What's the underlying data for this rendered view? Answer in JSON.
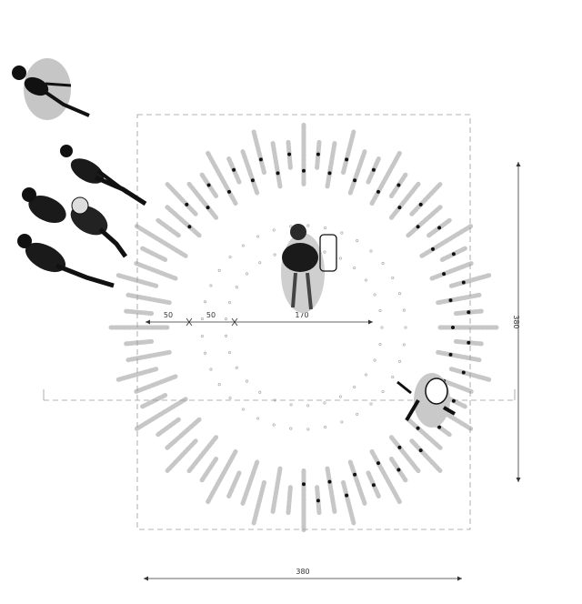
{
  "drawing": {
    "type": "architectural plan of a radial installation",
    "dimensions": {
      "segment_a": "50",
      "segment_b": "50",
      "segment_c": "170",
      "width": "380",
      "height": "380"
    },
    "figure_count": 6,
    "colors": {
      "line": "#8a8a8a",
      "ink": "#111111",
      "shadow": "#bdbdbd",
      "background": "#ffffff"
    }
  }
}
